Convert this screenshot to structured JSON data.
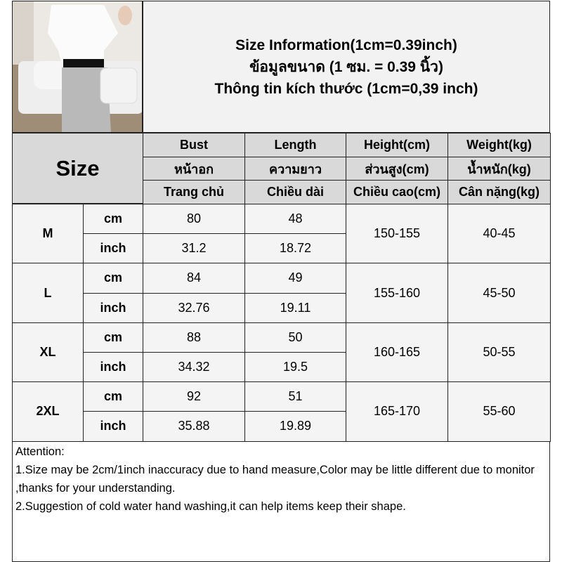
{
  "title": {
    "lines": [
      "Size Information(1cm=0.39inch)",
      "ข้อมูลขนาด (1 ซม. = 0.39 นิ้ว)",
      "Thông tin kích thước (1cm=0,39 inch)"
    ]
  },
  "header": {
    "size": "Size",
    "columns": [
      [
        "Bust",
        "หน้าอก",
        "Trang chủ"
      ],
      [
        "Length",
        "ความยาว",
        "Chiều dài"
      ],
      [
        "Height(cm)",
        "ส่วนสูง(cm)",
        "Chiều cao(cm)"
      ],
      [
        "Weight(kg)",
        "น้ำหนัก(kg)",
        "Cân nặng(kg)"
      ]
    ]
  },
  "rows": [
    {
      "size": "M",
      "cm": {
        "unit": "cm",
        "bust": "80",
        "length": "48"
      },
      "inch": {
        "unit": "inch",
        "bust": "31.2",
        "length": "18.72"
      },
      "height": "150-155",
      "weight": "40-45"
    },
    {
      "size": "L",
      "cm": {
        "unit": "cm",
        "bust": "84",
        "length": "49"
      },
      "inch": {
        "unit": "inch",
        "bust": "32.76",
        "length": "19.11"
      },
      "height": "155-160",
      "weight": "45-50"
    },
    {
      "size": "XL",
      "cm": {
        "unit": "cm",
        "bust": "88",
        "length": "50"
      },
      "inch": {
        "unit": "inch",
        "bust": "34.32",
        "length": "19.5"
      },
      "height": "160-165",
      "weight": "50-55"
    },
    {
      "size": "2XL",
      "cm": {
        "unit": "cm",
        "bust": "92",
        "length": "51"
      },
      "inch": {
        "unit": "inch",
        "bust": "35.88",
        "length": "19.89"
      },
      "height": "165-170",
      "weight": "55-60"
    }
  ],
  "attention": {
    "lines": [
      "Attention:",
      "1.Size may be 2cm/1inch inaccuracy due to hand measure,Color may be little different due to monitor ,thanks for your understanding.",
      "2.Suggestion of cold water hand washing,it can help items keep their shape."
    ]
  }
}
